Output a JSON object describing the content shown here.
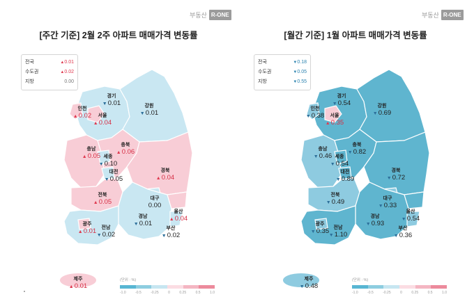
{
  "brand": {
    "logo_text": "부동산",
    "logo_mark": "R-ONE"
  },
  "weekly": {
    "title": "[주간 기준] 2월 2주 아파트 매매가격 변동률",
    "summary": [
      {
        "name": "전국",
        "dir": "up",
        "arrow": "▲",
        "value": "0.01"
      },
      {
        "name": "수도권",
        "dir": "up",
        "arrow": "▲",
        "value": "0.02"
      },
      {
        "name": "지방",
        "dir": "flat",
        "arrow": "",
        "value": "0.00"
      }
    ],
    "regions": [
      {
        "key": "gyeonggi",
        "name": "경기",
        "arrow": "▼",
        "dir": "down",
        "value": "0.01"
      },
      {
        "key": "gangwon",
        "name": "강원",
        "arrow": "▼",
        "dir": "down",
        "value": "0.01"
      },
      {
        "key": "incheon",
        "name": "인천",
        "arrow": "▲",
        "dir": "up",
        "value": "0.02"
      },
      {
        "key": "seoul",
        "name": "서울",
        "arrow": "▲",
        "dir": "up",
        "value": "0.04"
      },
      {
        "key": "chungbuk",
        "name": "충북",
        "arrow": "▲",
        "dir": "up",
        "value": "0.06"
      },
      {
        "key": "chungnam",
        "name": "충남",
        "arrow": "▲",
        "dir": "up",
        "value": "0.05"
      },
      {
        "key": "sejong",
        "name": "세종",
        "arrow": "▼",
        "dir": "down",
        "value": "0.10"
      },
      {
        "key": "daejeon",
        "name": "대전",
        "arrow": "▼",
        "dir": "down",
        "value": "0.05"
      },
      {
        "key": "gyeongbuk",
        "name": "경북",
        "arrow": "▲",
        "dir": "up",
        "value": "0.04"
      },
      {
        "key": "jeonbuk",
        "name": "전북",
        "arrow": "▲",
        "dir": "up",
        "value": "0.05"
      },
      {
        "key": "daegu",
        "name": "대구",
        "arrow": "",
        "dir": "flat",
        "value": "0.00"
      },
      {
        "key": "ulsan",
        "name": "울산",
        "arrow": "▲",
        "dir": "up",
        "value": "0.04"
      },
      {
        "key": "gyeongnam",
        "name": "경남",
        "arrow": "▼",
        "dir": "down",
        "value": "0.01"
      },
      {
        "key": "gwangju",
        "name": "광주",
        "arrow": "▲",
        "dir": "up",
        "value": "0.01"
      },
      {
        "key": "jeonnam",
        "name": "전남",
        "arrow": "▼",
        "dir": "down",
        "value": "0.02"
      },
      {
        "key": "busan",
        "name": "부산",
        "arrow": "▼",
        "dir": "down",
        "value": "0.02"
      },
      {
        "key": "jeju",
        "name": "제주",
        "arrow": "▲",
        "dir": "up",
        "value": "0.01"
      }
    ]
  },
  "monthly": {
    "title": "[월간 기준] 1월 아파트 매매가격 변동률",
    "summary": [
      {
        "name": "전국",
        "dir": "down",
        "arrow": "▼",
        "value": "0.18"
      },
      {
        "name": "수도권",
        "dir": "down",
        "arrow": "▼",
        "value": "0.05"
      },
      {
        "name": "지방",
        "dir": "down",
        "arrow": "▼",
        "value": "0.55"
      }
    ],
    "regions": [
      {
        "key": "gyeonggi",
        "name": "경기",
        "arrow": "▼",
        "dir": "down",
        "value": "0.54"
      },
      {
        "key": "gangwon",
        "name": "강원",
        "arrow": "▼",
        "dir": "down",
        "value": "0.69"
      },
      {
        "key": "incheon",
        "name": "인천",
        "arrow": "▼",
        "dir": "down",
        "value": "0.38"
      },
      {
        "key": "seoul",
        "name": "서울",
        "arrow": "▲",
        "dir": "up",
        "value": "0.35"
      },
      {
        "key": "chungbuk",
        "name": "충북",
        "arrow": "▼",
        "dir": "down",
        "value": "0.82"
      },
      {
        "key": "chungnam",
        "name": "충남",
        "arrow": "▼",
        "dir": "down",
        "value": "0.46"
      },
      {
        "key": "sejong",
        "name": "세종",
        "arrow": "▼",
        "dir": "down",
        "value": "0.54"
      },
      {
        "key": "daejeon",
        "name": "대전",
        "arrow": "▼",
        "dir": "down",
        "value": "0.89"
      },
      {
        "key": "gyeongbuk",
        "name": "경북",
        "arrow": "▼",
        "dir": "down",
        "value": "0.72"
      },
      {
        "key": "jeonbuk",
        "name": "전북",
        "arrow": "▼",
        "dir": "down",
        "value": "0.49"
      },
      {
        "key": "daegu",
        "name": "대구",
        "arrow": "▼",
        "dir": "down",
        "value": "0.33"
      },
      {
        "key": "ulsan",
        "name": "울산",
        "arrow": "▼",
        "dir": "down",
        "value": "0.54"
      },
      {
        "key": "gyeongnam",
        "name": "경남",
        "arrow": "▼",
        "dir": "down",
        "value": "0.93"
      },
      {
        "key": "gwangju",
        "name": "광주",
        "arrow": "▼",
        "dir": "down",
        "value": "0.35"
      },
      {
        "key": "jeonnam",
        "name": "전남",
        "arrow": "▼",
        "dir": "down",
        "value": "1.10"
      },
      {
        "key": "busan",
        "name": "부산",
        "arrow": "▼",
        "dir": "down",
        "value": "0.36"
      },
      {
        "key": "jeju",
        "name": "제주",
        "arrow": "▼",
        "dir": "down",
        "value": "0.48"
      }
    ]
  },
  "legend": {
    "unit": "(단위 : %)",
    "ticks": [
      "-1.0",
      "-0.5",
      "-0.25",
      "0",
      "0.25",
      "0.5",
      "1.0"
    ],
    "colors": [
      "#58b6d3",
      "#8dcde0",
      "#c7e6f1",
      "#fbdde3",
      "#f4b6c2",
      "#ec8a9c"
    ]
  },
  "colors": {
    "up_text": "#e0394f",
    "down_text": "#2c83b0",
    "weekly_pink": "#f8cdd6",
    "weekly_light_blue": "#c9e7f2",
    "monthly_teal": "#5fb5cf",
    "monthly_light_teal": "#8ecbe0"
  }
}
